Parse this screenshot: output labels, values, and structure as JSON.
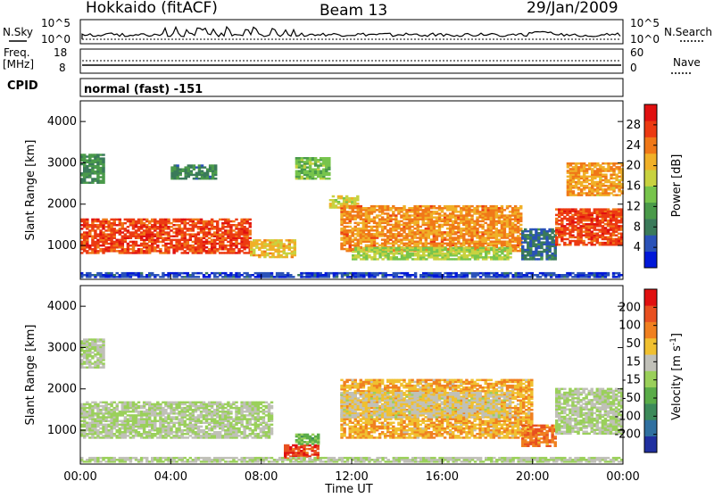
{
  "header": {
    "station": "Hokkaido (fitACF)",
    "beam": "Beam 13",
    "date": "29/Jan/2009"
  },
  "noise_panel": {
    "left_label": "N.Sky",
    "right_label": "N.Search",
    "left_ticks": [
      "10^5",
      "10^0"
    ],
    "right_ticks": [
      "10^5",
      "10^0"
    ]
  },
  "freq_panel": {
    "left_label_1": "Freq.",
    "left_label_2": "[MHz]",
    "right_label": "Nave",
    "left_ticks": [
      "18",
      "8"
    ],
    "right_ticks": [
      "60",
      "0"
    ]
  },
  "cpid": {
    "label": "CPID",
    "value": "normal (fast) -151"
  },
  "x_axis": {
    "label": "Time UT",
    "ticks": [
      "00:00",
      "04:00",
      "08:00",
      "12:00",
      "16:00",
      "20:00",
      "00:00"
    ]
  },
  "chart_data": [
    {
      "type": "heatmap",
      "title": "",
      "ylabel": "Slant Range [km]",
      "ylim": [
        180,
        4500
      ],
      "y_ticks": [
        "1000",
        "2000",
        "3000",
        "4000"
      ],
      "colorbar": {
        "label": "Power [dB]",
        "range": [
          0,
          32
        ],
        "ticks": [
          "4",
          "8",
          "12",
          "16",
          "20",
          "24",
          "28"
        ],
        "colors": [
          "#0018d8",
          "#2a52b8",
          "#3a7a5a",
          "#4a9a4a",
          "#77c44c",
          "#c8d240",
          "#f0b028",
          "#f07818",
          "#ec3a12",
          "#e01010"
        ]
      },
      "regions": [
        {
          "t0": 0.0,
          "t1": 7.5,
          "r0": 800,
          "r1": 1650,
          "v": 27
        },
        {
          "t0": 7.5,
          "t1": 9.5,
          "r0": 700,
          "r1": 1150,
          "v": 20
        },
        {
          "t0": 0.0,
          "t1": 1.0,
          "r0": 2500,
          "r1": 3200,
          "v": 10
        },
        {
          "t0": 4.0,
          "t1": 6.0,
          "r0": 2600,
          "r1": 2950,
          "v": 9
        },
        {
          "t0": 11.0,
          "t1": 12.3,
          "r0": 1900,
          "r1": 2200,
          "v": 18
        },
        {
          "t0": 11.5,
          "t1": 19.5,
          "r0": 850,
          "r1": 1950,
          "v": 23
        },
        {
          "t0": 12.0,
          "t1": 19.0,
          "r0": 650,
          "r1": 950,
          "v": 16
        },
        {
          "t0": 19.5,
          "t1": 21.0,
          "r0": 650,
          "r1": 1400,
          "v": 7
        },
        {
          "t0": 21.0,
          "t1": 24.0,
          "r0": 1000,
          "r1": 1900,
          "v": 27
        },
        {
          "t0": 21.5,
          "t1": 24.0,
          "r0": 2200,
          "r1": 3000,
          "v": 22
        },
        {
          "t0": 9.5,
          "t1": 11.0,
          "r0": 2600,
          "r1": 3100,
          "v": 14
        },
        {
          "t0": 0.0,
          "t1": 24.0,
          "r0": 220,
          "r1": 320,
          "v": 4
        }
      ]
    },
    {
      "type": "heatmap",
      "title": "",
      "ylabel": "Slant Range [km]",
      "ylim": [
        180,
        4500
      ],
      "y_ticks": [
        "1000",
        "2000",
        "3000",
        "4000"
      ],
      "colorbar": {
        "label": "Velocity [m s^-1]",
        "range": [
          -250,
          250
        ],
        "ticks": [
          "200",
          "100",
          "50",
          "15",
          "-15",
          "-50",
          "-100",
          "-200"
        ],
        "colors": [
          "#2030a0",
          "#3070a0",
          "#3c8a5a",
          "#5aac48",
          "#9ad05a",
          "#c0c0b8",
          "#f0c030",
          "#f08020",
          "#e85020",
          "#e01010"
        ]
      },
      "regions": [
        {
          "t0": 0.0,
          "t1": 8.5,
          "r0": 800,
          "r1": 1700,
          "v": 0
        },
        {
          "t0": 0.0,
          "t1": 1.0,
          "r0": 2500,
          "r1": 3200,
          "v": 0
        },
        {
          "t0": 9.0,
          "t1": 10.5,
          "r0": 300,
          "r1": 650,
          "v": 180
        },
        {
          "t0": 9.5,
          "t1": 10.5,
          "r0": 650,
          "r1": 900,
          "v": -60
        },
        {
          "t0": 11.5,
          "t1": 20.0,
          "r0": 800,
          "r1": 2200,
          "v": 90
        },
        {
          "t0": 11.5,
          "t1": 19.0,
          "r0": 1300,
          "r1": 1900,
          "v": 40
        },
        {
          "t0": 19.5,
          "t1": 21.0,
          "r0": 600,
          "r1": 1100,
          "v": 140
        },
        {
          "t0": 21.0,
          "t1": 24.0,
          "r0": 900,
          "r1": 2000,
          "v": 0
        },
        {
          "t0": 0.0,
          "t1": 24.0,
          "r0": 220,
          "r1": 320,
          "v": 0
        }
      ]
    }
  ]
}
